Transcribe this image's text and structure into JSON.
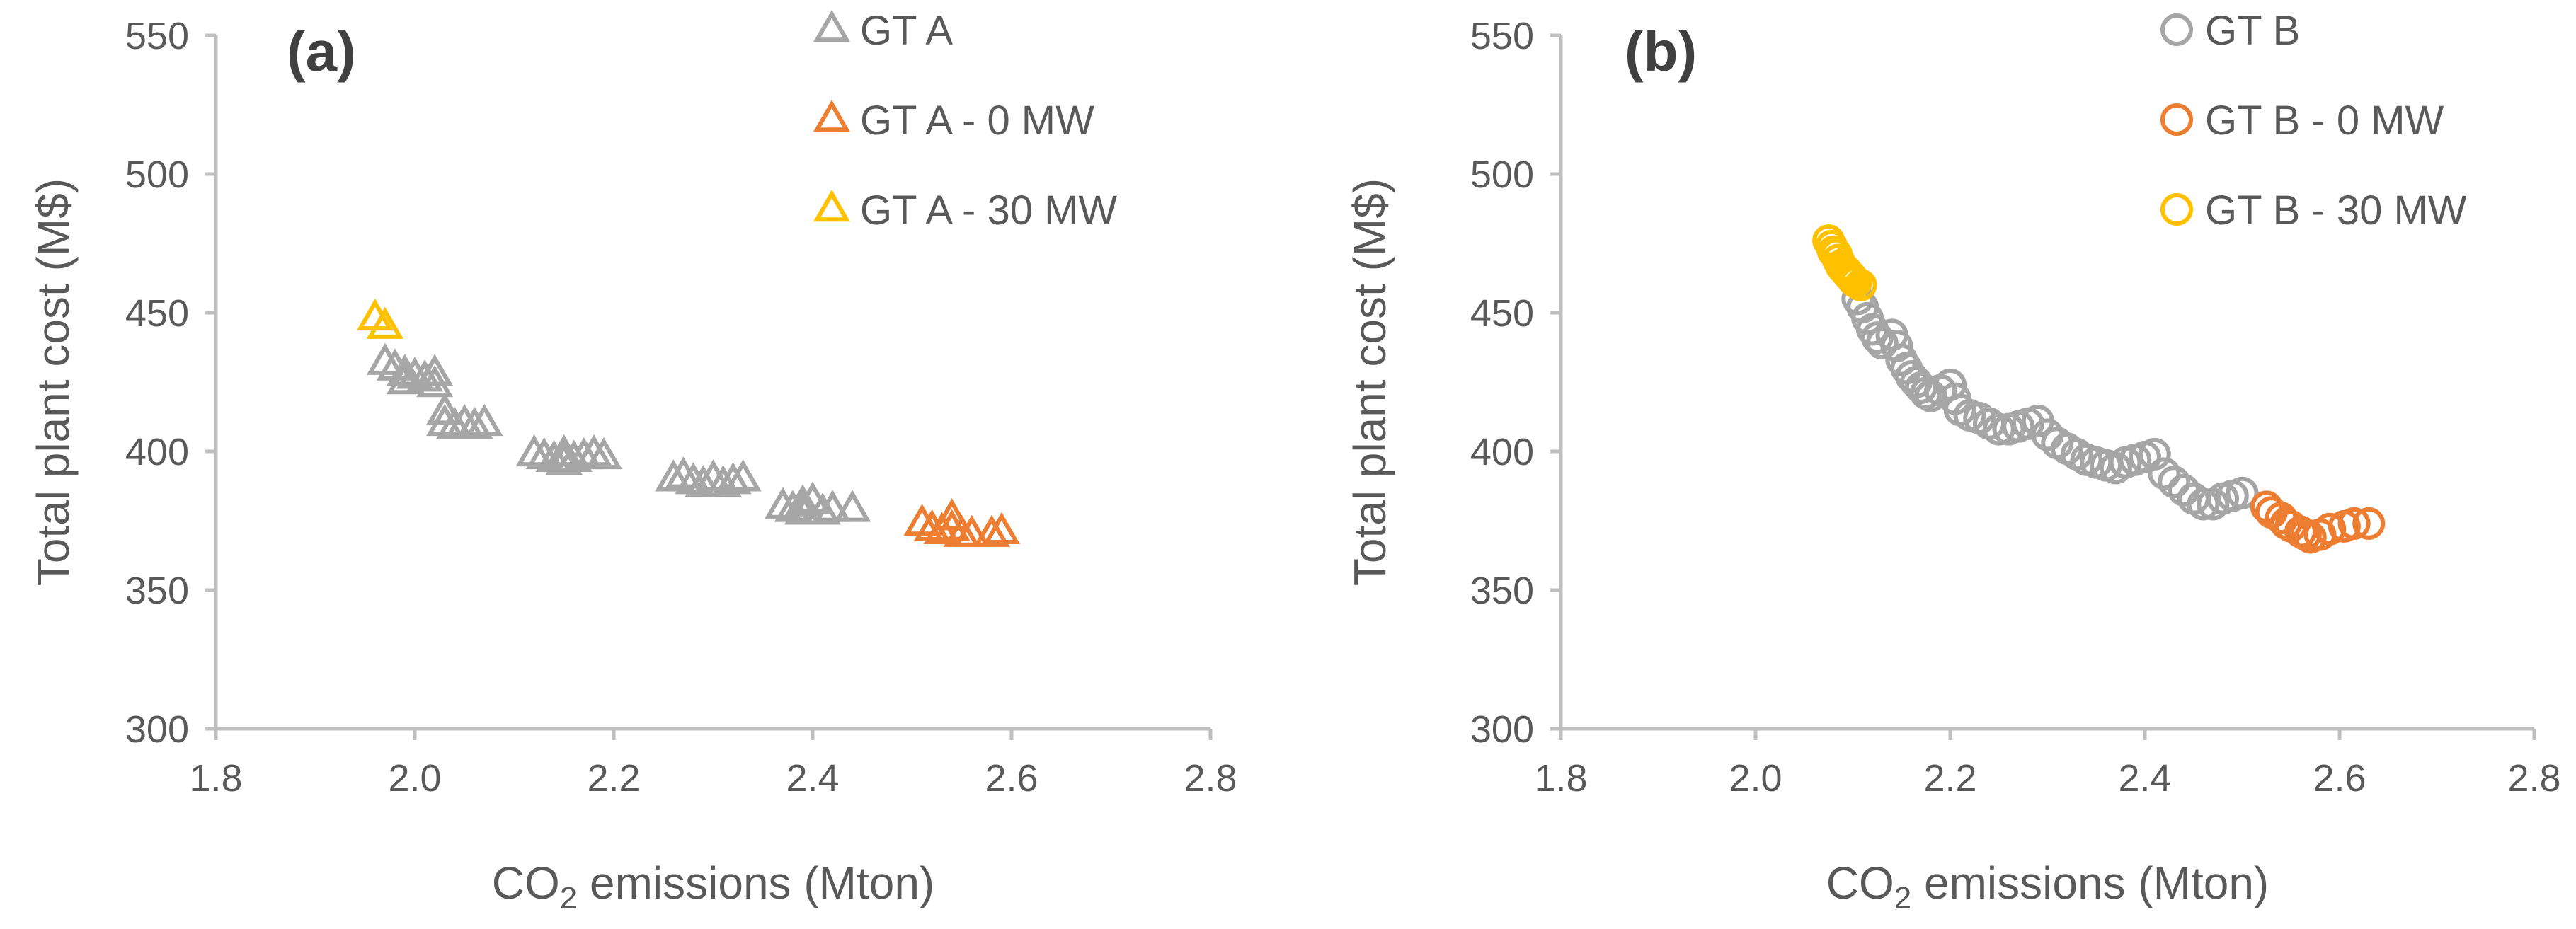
{
  "colors": {
    "gray": "#a6a6a6",
    "orange": "#ed7d31",
    "yellow": "#ffc000",
    "axis": "#bfbfbf",
    "text": "#595959"
  },
  "chart_data": [
    {
      "type": "scatter",
      "panel_label": "(a)",
      "marker": "triangle",
      "xlabel_prefix": "CO",
      "xlabel_sub": "2",
      "xlabel_suffix": " emissions (Mton)",
      "ylabel": "Total plant cost (M$)",
      "xlim": [
        1.8,
        2.8
      ],
      "ylim": [
        300,
        550
      ],
      "xticks": [
        "1.8",
        "2.0",
        "2.2",
        "2.4",
        "2.6",
        "2.8"
      ],
      "yticks": [
        "300",
        "350",
        "400",
        "450",
        "500",
        "550"
      ],
      "grid": false,
      "legend_position": "top-center",
      "series": [
        {
          "name": "GT A",
          "color": "#a6a6a6",
          "points": [
            [
              1.97,
              432
            ],
            [
              1.98,
              430
            ],
            [
              1.99,
              428
            ],
            [
              1.99,
              425
            ],
            [
              2.0,
              427
            ],
            [
              2.01,
              426
            ],
            [
              2.02,
              428
            ],
            [
              2.02,
              424
            ],
            [
              2.03,
              414
            ],
            [
              2.03,
              410
            ],
            [
              2.04,
              409
            ],
            [
              2.05,
              410
            ],
            [
              2.06,
              409
            ],
            [
              2.07,
              410
            ],
            [
              2.12,
              399
            ],
            [
              2.13,
              398
            ],
            [
              2.14,
              397
            ],
            [
              2.15,
              396
            ],
            [
              2.15,
              399
            ],
            [
              2.16,
              397
            ],
            [
              2.17,
              398
            ],
            [
              2.18,
              399
            ],
            [
              2.19,
              398
            ],
            [
              2.26,
              390
            ],
            [
              2.27,
              391
            ],
            [
              2.28,
              389
            ],
            [
              2.29,
              388
            ],
            [
              2.3,
              390
            ],
            [
              2.31,
              388
            ],
            [
              2.32,
              389
            ],
            [
              2.33,
              390
            ],
            [
              2.37,
              380
            ],
            [
              2.38,
              379
            ],
            [
              2.39,
              378
            ],
            [
              2.39,
              381
            ],
            [
              2.4,
              382
            ],
            [
              2.41,
              378
            ],
            [
              2.42,
              379
            ],
            [
              2.44,
              379
            ]
          ]
        },
        {
          "name": "GT A - 0 MW",
          "color": "#ed7d31",
          "points": [
            [
              2.51,
              374
            ],
            [
              2.52,
              372
            ],
            [
              2.53,
              371
            ],
            [
              2.54,
              376
            ],
            [
              2.54,
              372
            ],
            [
              2.55,
              370
            ],
            [
              2.56,
              370
            ],
            [
              2.58,
              370
            ],
            [
              2.59,
              371
            ]
          ]
        },
        {
          "name": "GT A - 30 MW",
          "color": "#ffc000",
          "points": [
            [
              1.96,
              448
            ],
            [
              1.97,
              445
            ]
          ]
        }
      ]
    },
    {
      "type": "scatter",
      "panel_label": "(b)",
      "marker": "circle",
      "xlabel_prefix": "CO",
      "xlabel_sub": "2",
      "xlabel_suffix": " emissions (Mton)",
      "ylabel": "Total plant cost (M$)",
      "xlim": [
        1.8,
        2.8
      ],
      "ylim": [
        300,
        550
      ],
      "xticks": [
        "1.8",
        "2.0",
        "2.2",
        "2.4",
        "2.6",
        "2.8"
      ],
      "yticks": [
        "300",
        "350",
        "400",
        "450",
        "500",
        "550"
      ],
      "grid": false,
      "legend_position": "top-center",
      "series": [
        {
          "name": "GT B",
          "color": "#a6a6a6",
          "points": [
            [
              2.105,
              455
            ],
            [
              2.11,
              452
            ],
            [
              2.115,
              448
            ],
            [
              2.12,
              444
            ],
            [
              2.125,
              441
            ],
            [
              2.13,
              439
            ],
            [
              2.14,
              442
            ],
            [
              2.145,
              438
            ],
            [
              2.15,
              433
            ],
            [
              2.155,
              430
            ],
            [
              2.16,
              427
            ],
            [
              2.165,
              425
            ],
            [
              2.17,
              423
            ],
            [
              2.175,
              421
            ],
            [
              2.18,
              420
            ],
            [
              2.19,
              422
            ],
            [
              2.2,
              424
            ],
            [
              2.205,
              419
            ],
            [
              2.21,
              415
            ],
            [
              2.22,
              413
            ],
            [
              2.23,
              412
            ],
            [
              2.24,
              410
            ],
            [
              2.25,
              408
            ],
            [
              2.26,
              408
            ],
            [
              2.27,
              409
            ],
            [
              2.28,
              410
            ],
            [
              2.29,
              411
            ],
            [
              2.3,
              406
            ],
            [
              2.31,
              403
            ],
            [
              2.32,
              401
            ],
            [
              2.33,
              399
            ],
            [
              2.34,
              397
            ],
            [
              2.35,
              396
            ],
            [
              2.36,
              395
            ],
            [
              2.37,
              394
            ],
            [
              2.38,
              396
            ],
            [
              2.39,
              397
            ],
            [
              2.4,
              398
            ],
            [
              2.41,
              399
            ],
            [
              2.42,
              392
            ],
            [
              2.43,
              389
            ],
            [
              2.44,
              386
            ],
            [
              2.45,
              383
            ],
            [
              2.46,
              381
            ],
            [
              2.47,
              381
            ],
            [
              2.48,
              383
            ],
            [
              2.49,
              384
            ],
            [
              2.5,
              385
            ]
          ]
        },
        {
          "name": "GT B - 0 MW",
          "color": "#ed7d31",
          "points": [
            [
              2.525,
              380
            ],
            [
              2.53,
              378
            ],
            [
              2.54,
              376
            ],
            [
              2.545,
              374
            ],
            [
              2.55,
              373
            ],
            [
              2.56,
              371
            ],
            [
              2.565,
              370
            ],
            [
              2.57,
              369
            ],
            [
              2.58,
              370
            ],
            [
              2.59,
              372
            ],
            [
              2.605,
              373
            ],
            [
              2.615,
              374
            ],
            [
              2.63,
              374
            ]
          ]
        },
        {
          "name": "GT B - 30 MW",
          "color": "#ffc000",
          "points": [
            [
              2.075,
              476
            ],
            [
              2.078,
              474
            ],
            [
              2.08,
              472
            ],
            [
              2.083,
              471
            ],
            [
              2.085,
              469
            ],
            [
              2.088,
              467
            ],
            [
              2.09,
              466
            ],
            [
              2.093,
              465
            ],
            [
              2.095,
              464
            ],
            [
              2.098,
              463
            ],
            [
              2.1,
              462
            ],
            [
              2.103,
              461
            ],
            [
              2.108,
              460
            ]
          ]
        }
      ]
    }
  ]
}
